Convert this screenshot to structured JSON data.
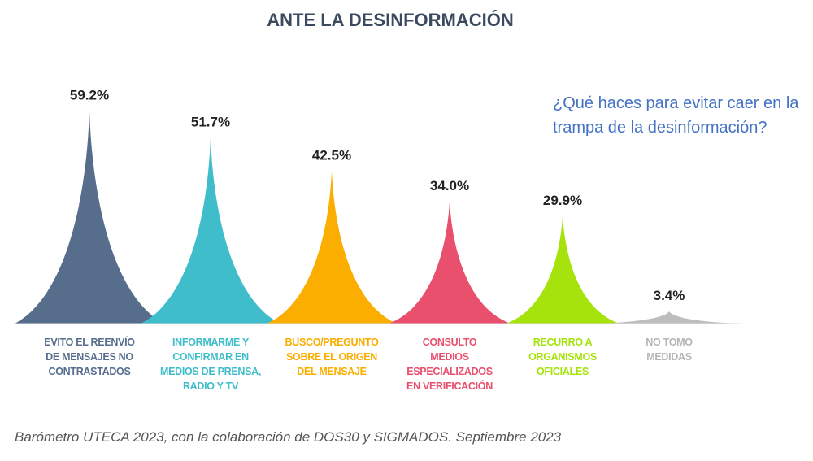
{
  "chart_data": {
    "type": "bar",
    "title": "ANTE LA DESINFORMACIÓN",
    "subtitle": "¿Qué haces para evitar caer en la trampa de la desinformación?",
    "categories": [
      "EVITO EL REENVÍO DE MENSAJES NO CONTRASTADOS",
      "INFORMARME Y CONFIRMAR EN MEDIOS DE PRENSA, RADIO Y TV",
      "BUSCO/PREGUNTO SOBRE EL ORIGEN DEL MENSAJE",
      "CONSULTO MEDIOS ESPECIALIZADOS EN VERIFICACIÓN",
      "RECURRO A ORGANISMOS OFICIALES",
      "NO TOMO MEDIDAS"
    ],
    "category_lines": [
      "EVITO EL REENVÍO\nDE MENSAJES NO\nCONTRASTADOS",
      "INFORMARME Y\nCONFIRMAR EN\nMEDIOS DE PRENSA,\nRADIO Y TV",
      "BUSCO/PREGUNTO\nSOBRE EL ORIGEN\nDEL MENSAJE",
      "CONSULTO\nMEDIOS\nESPECIALIZADOS\nEN VERIFICACIÓN",
      "RECURRO A\nORGANISMOS\nOFICIALES",
      "NO TOMO\nMEDIDAS"
    ],
    "values": [
      59.2,
      51.7,
      42.5,
      34.0,
      29.9,
      3.4
    ],
    "labels": [
      "59.2%",
      "51.7%",
      "42.5%",
      "34.0%",
      "29.9%",
      "3.4%"
    ],
    "colors": [
      "#566e8c",
      "#3fbdca",
      "#fbad00",
      "#e8506e",
      "#a6e30c",
      "#bdbdbd"
    ],
    "xlabel": "",
    "ylabel": "",
    "ylim": [
      0,
      60
    ],
    "grid": false
  },
  "source": "Barómetro UTECA 2023, con la colaboración de DOS30 y SIGMADOS. Septiembre 2023"
}
